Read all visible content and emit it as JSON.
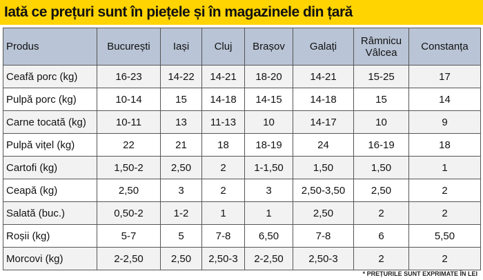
{
  "title": "Iată ce prețuri sunt în piețele și în magazinele din țară",
  "table": {
    "header": [
      "Produs",
      "București",
      "Iași",
      "Cluj",
      "Brașov",
      "Galați",
      "Râmnicu Vâlcea",
      "Constanța"
    ],
    "rows": [
      [
        "Ceafă porc (kg)",
        "16-23",
        "14-22",
        "14-21",
        "18-20",
        "14-21",
        "15-25",
        "17"
      ],
      [
        "Pulpă porc (kg)",
        "10-14",
        "15",
        "14-18",
        "14-15",
        "14-18",
        "15",
        "14"
      ],
      [
        "Carne tocată (kg)",
        "10-11",
        "13",
        "11-13",
        "10",
        "14-17",
        "10",
        "9"
      ],
      [
        "Pulpă vițel (kg)",
        "22",
        "21",
        "18",
        "18-19",
        "24",
        "16-19",
        "18"
      ],
      [
        "Cartofi (kg)",
        "1,50-2",
        "2,50",
        "2",
        "1-1,50",
        "1,50",
        "1,50",
        "1"
      ],
      [
        "Ceapă (kg)",
        "2,50",
        "3",
        "2",
        "3",
        "2,50-3,50",
        "2,50",
        "2"
      ],
      [
        "Salată (buc.)",
        "0,50-2",
        "1-2",
        "1",
        "1",
        "2,50",
        "2",
        "2"
      ],
      [
        "Roșii (kg)",
        "5-7",
        "5",
        "7-8",
        "6,50",
        "7-8",
        "6",
        "5,50"
      ],
      [
        "Morcovi (kg)",
        "2-2,50",
        "2,50",
        "2,50-3",
        "2-2,50",
        "2,50-3",
        "2",
        "2"
      ]
    ]
  },
  "footnote": "* PREȚURILE SUNT EXPRIMATE ÎN LEI"
}
